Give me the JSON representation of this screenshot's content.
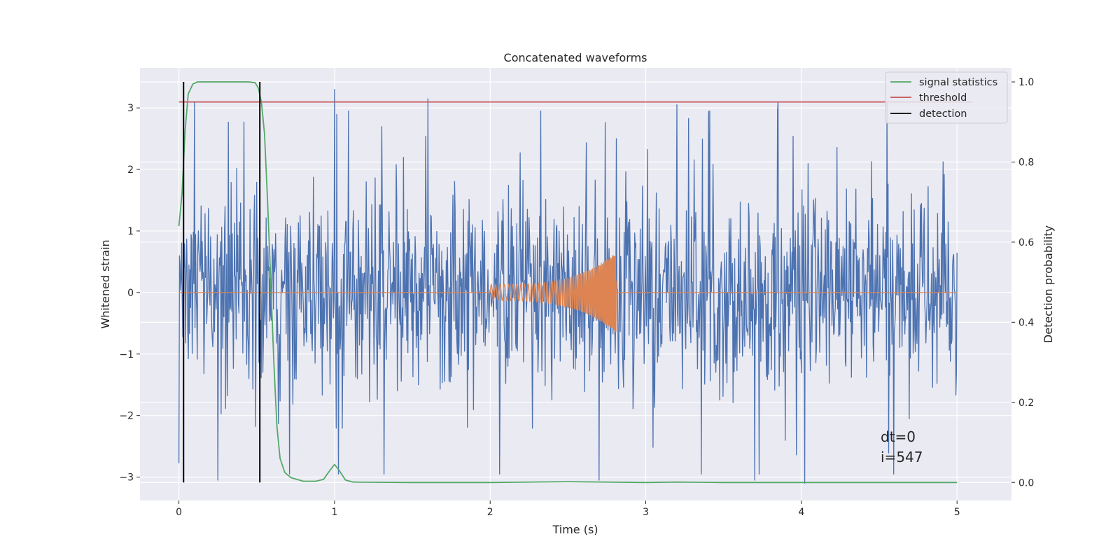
{
  "chart_data": {
    "type": "line",
    "title": "Concatenated waveforms",
    "xlabel": "Time (s)",
    "ylabel": "Whitened strain",
    "ylabel_right": "Detection probability",
    "xlim": [
      -0.25,
      5.35
    ],
    "ylim": [
      -3.38,
      3.65
    ],
    "ylim_right": [
      -0.045,
      1.035
    ],
    "xticks": [
      0,
      1,
      2,
      3,
      4,
      5
    ],
    "yticks": [
      -3,
      -2,
      -1,
      0,
      1,
      2,
      3
    ],
    "yticks_right": [
      0.0,
      0.2,
      0.4,
      0.6,
      0.8,
      1.0
    ],
    "xtick_labels": [
      "0",
      "1",
      "2",
      "3",
      "4",
      "5"
    ],
    "ytick_labels": [
      "−3",
      "−2",
      "−1",
      "0",
      "1",
      "2",
      "3"
    ],
    "ytick_right_labels": [
      "0.0",
      "0.2",
      "0.4",
      "0.6",
      "0.8",
      "1.0"
    ],
    "grid": true,
    "legend_position": "top-right",
    "colors": {
      "strain": "#4c72b0",
      "injection": "#dd8452",
      "signal_statistics": "#55a868",
      "threshold": "#c44e52",
      "detection": "#000000",
      "background": "#eaeaf2",
      "grid": "#ffffff"
    },
    "series": [
      {
        "name": "",
        "axis": "left",
        "kind": "noise",
        "x_range": [
          0,
          5
        ],
        "sample_count": 1400,
        "peak_values": [
          {
            "x": 0.1,
            "y": 3.1
          },
          {
            "x": 1.0,
            "y": 3.3
          },
          {
            "x": 1.6,
            "y": 3.15
          },
          {
            "x": 3.2,
            "y": 3.05
          },
          {
            "x": 3.85,
            "y": 3.1
          },
          {
            "x": 4.55,
            "y": 3.1
          },
          {
            "x": 0.25,
            "y": -3.05
          },
          {
            "x": 2.7,
            "y": -3.05
          },
          {
            "x": 3.7,
            "y": -3.05
          },
          {
            "x": 4.02,
            "y": -3.1
          }
        ]
      },
      {
        "name": "",
        "axis": "left",
        "kind": "chirp",
        "x_range": [
          2.0,
          2.81
        ],
        "amplitude_start": 0.13,
        "amplitude_end": 0.65,
        "frequency_start_hz": 35,
        "frequency_end_hz": 160
      },
      {
        "name": "signal statistics",
        "axis": "right",
        "points": [
          [
            0.0,
            0.64
          ],
          [
            0.02,
            0.72
          ],
          [
            0.04,
            0.88
          ],
          [
            0.06,
            0.97
          ],
          [
            0.09,
            0.995
          ],
          [
            0.12,
            1.0
          ],
          [
            0.3,
            1.0
          ],
          [
            0.45,
            1.0
          ],
          [
            0.49,
            0.998
          ],
          [
            0.51,
            0.985
          ],
          [
            0.53,
            0.95
          ],
          [
            0.55,
            0.87
          ],
          [
            0.57,
            0.7
          ],
          [
            0.59,
            0.5
          ],
          [
            0.61,
            0.3
          ],
          [
            0.63,
            0.14
          ],
          [
            0.65,
            0.06
          ],
          [
            0.68,
            0.025
          ],
          [
            0.72,
            0.012
          ],
          [
            0.8,
            0.003
          ],
          [
            0.88,
            0.003
          ],
          [
            0.93,
            0.008
          ],
          [
            0.97,
            0.03
          ],
          [
            1.0,
            0.045
          ],
          [
            1.03,
            0.03
          ],
          [
            1.07,
            0.006
          ],
          [
            1.12,
            0.001
          ],
          [
            1.5,
            0.0
          ],
          [
            2.0,
            0.0
          ],
          [
            2.5,
            0.002
          ],
          [
            3.0,
            0.0
          ],
          [
            3.2,
            0.001
          ],
          [
            3.5,
            0.0
          ],
          [
            4.0,
            0.0
          ],
          [
            4.5,
            0.0
          ],
          [
            5.0,
            0.0
          ]
        ]
      },
      {
        "name": "threshold",
        "axis": "right",
        "points": [
          [
            0.0,
            0.95
          ],
          [
            5.1,
            0.95
          ]
        ]
      },
      {
        "name": "detection",
        "axis": "right",
        "kind": "vlines",
        "x": [
          0.03,
          0.52
        ],
        "y_range": [
          0.0,
          1.0
        ]
      }
    ],
    "annotations": [
      "dt=0",
      "i=547"
    ]
  }
}
